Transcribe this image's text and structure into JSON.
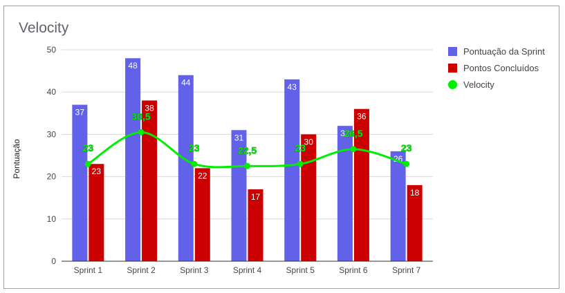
{
  "chart_data": {
    "type": "bar",
    "title": "Velocity",
    "xlabel": "",
    "ylabel": "Pontuação",
    "ylim": [
      0,
      50
    ],
    "yticks": [
      0,
      10,
      20,
      30,
      40,
      50
    ],
    "grid": true,
    "legend_position": "right",
    "categories": [
      "Sprint 1",
      "Sprint 2",
      "Sprint 3",
      "Sprint 4",
      "Sprint 5",
      "Sprint 6",
      "Sprint 7"
    ],
    "series": [
      {
        "name": "Pontuação da Sprint",
        "kind": "bar",
        "color": "#6161ea",
        "values": [
          37,
          48,
          44,
          31,
          43,
          32,
          26
        ],
        "labels": [
          "37",
          "48",
          "44",
          "31",
          "43",
          "32",
          "26"
        ]
      },
      {
        "name": "Pontos Concluídos",
        "kind": "bar",
        "color": "#cc0000",
        "values": [
          23,
          38,
          22,
          17,
          30,
          36,
          18
        ],
        "labels": [
          "23",
          "38",
          "22",
          "17",
          "30",
          "36",
          "18"
        ]
      },
      {
        "name": "Velocity",
        "kind": "line",
        "color": "#00ee00",
        "values": [
          23,
          30.5,
          23,
          22.5,
          23,
          26.5,
          23
        ],
        "labels": [
          "23",
          "30,5",
          "23",
          "22,5",
          "23",
          "26,5",
          "23"
        ]
      }
    ]
  }
}
